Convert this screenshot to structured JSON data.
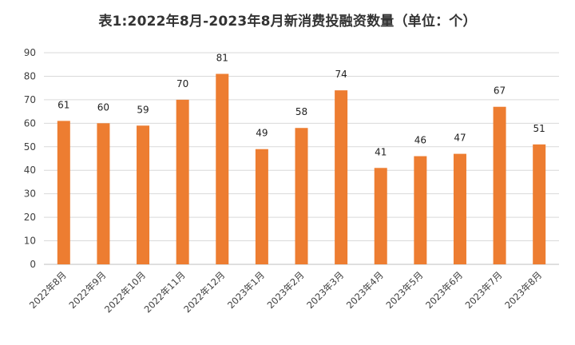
{
  "chart_data": {
    "type": "bar",
    "title": "表1:2022年8月-2023年8月新消费投融资数量（单位：个）",
    "categories": [
      "2022年8月",
      "2022年9月",
      "2022年10月",
      "2022年11月",
      "2022年12月",
      "2023年1月",
      "2023年2月",
      "2023年3月",
      "2023年4月",
      "2023年5月",
      "2023年6月",
      "2023年7月",
      "2023年8月"
    ],
    "values": [
      61,
      60,
      59,
      70,
      81,
      49,
      58,
      74,
      41,
      46,
      47,
      67,
      51
    ],
    "ylim": [
      0,
      90
    ],
    "yticks": [
      "0",
      "10",
      "20",
      "30",
      "40",
      "50",
      "60",
      "70",
      "80",
      "90"
    ],
    "grid": true,
    "colors": {
      "bar": "#ED7D31",
      "grid": "#D9D9D9",
      "axis": "#BFBFBF"
    }
  }
}
